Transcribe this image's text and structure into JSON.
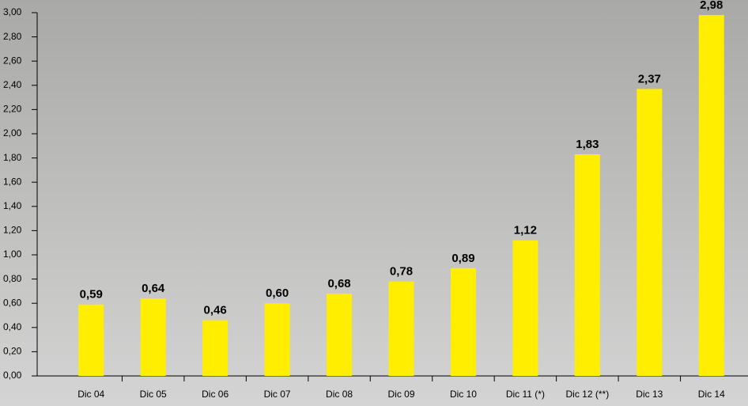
{
  "chart_data": {
    "type": "bar",
    "categories": [
      "Dic 04",
      "Dic 05",
      "Dic 06",
      "Dic 07",
      "Dic 08",
      "Dic 09",
      "Dic 10",
      "Dic 11 (*)",
      "Dic 12 (**)",
      "Dic 13",
      "Dic 14"
    ],
    "values": [
      0.59,
      0.64,
      0.46,
      0.6,
      0.68,
      0.78,
      0.89,
      1.12,
      1.83,
      2.37,
      2.98
    ],
    "value_labels": [
      "0,59",
      "0,64",
      "0,46",
      "0,60",
      "0,68",
      "0,78",
      "0,89",
      "1,12",
      "1,83",
      "2,37",
      "2,98"
    ],
    "color": "#ffee00",
    "ylim": [
      0,
      3
    ],
    "yticks": [
      {
        "value": 0,
        "label": "0,00"
      },
      {
        "value": 0.2,
        "label": "0,20"
      },
      {
        "value": 0.4,
        "label": "0,40"
      },
      {
        "value": 0.6,
        "label": "0,60"
      },
      {
        "value": 0.8,
        "label": "0,80"
      },
      {
        "value": 1.0,
        "label": "1,00"
      },
      {
        "value": 1.2,
        "label": "1,20"
      },
      {
        "value": 1.4,
        "label": "1,40"
      },
      {
        "value": 1.6,
        "label": "1,60"
      },
      {
        "value": 1.8,
        "label": "1,80"
      },
      {
        "value": 2.0,
        "label": "2,00"
      },
      {
        "value": 2.2,
        "label": "2,20"
      },
      {
        "value": 2.4,
        "label": "2,40"
      },
      {
        "value": 2.6,
        "label": "2,60"
      },
      {
        "value": 2.8,
        "label": "2,80"
      },
      {
        "value": 3.0,
        "label": "3,00"
      }
    ]
  }
}
